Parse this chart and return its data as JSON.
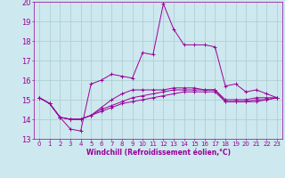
{
  "xlabel": "Windchill (Refroidissement éolien,°C)",
  "ylabel": "",
  "bg_color": "#cde8ee",
  "line_color": "#990099",
  "grid_color": "#aacccc",
  "xlim": [
    -0.5,
    23.5
  ],
  "ylim": [
    13,
    20
  ],
  "xticks": [
    0,
    1,
    2,
    3,
    4,
    5,
    6,
    7,
    8,
    9,
    10,
    11,
    12,
    13,
    14,
    15,
    16,
    17,
    18,
    19,
    20,
    21,
    22,
    23
  ],
  "yticks": [
    13,
    14,
    15,
    16,
    17,
    18,
    19,
    20
  ],
  "series": [
    [
      15.1,
      14.8,
      14.1,
      13.5,
      13.4,
      15.8,
      16.0,
      16.3,
      16.2,
      16.1,
      17.4,
      17.3,
      19.9,
      18.6,
      17.8,
      17.8,
      17.8,
      17.7,
      15.7,
      15.8,
      15.4,
      15.5,
      15.3,
      15.1
    ],
    [
      15.1,
      14.8,
      14.1,
      14.0,
      14.0,
      14.2,
      14.6,
      15.0,
      15.3,
      15.5,
      15.5,
      15.5,
      15.5,
      15.6,
      15.6,
      15.6,
      15.5,
      15.5,
      15.0,
      15.0,
      15.0,
      15.1,
      15.1,
      15.1
    ],
    [
      15.1,
      14.8,
      14.1,
      14.0,
      14.0,
      14.2,
      14.5,
      14.7,
      14.9,
      15.1,
      15.2,
      15.3,
      15.4,
      15.5,
      15.5,
      15.5,
      15.5,
      15.5,
      14.9,
      14.9,
      14.9,
      15.0,
      15.0,
      15.1
    ],
    [
      15.1,
      14.8,
      14.1,
      14.0,
      14.0,
      14.2,
      14.4,
      14.6,
      14.8,
      14.9,
      15.0,
      15.1,
      15.2,
      15.3,
      15.4,
      15.4,
      15.4,
      15.4,
      14.9,
      14.9,
      14.9,
      14.9,
      15.0,
      15.1
    ]
  ]
}
